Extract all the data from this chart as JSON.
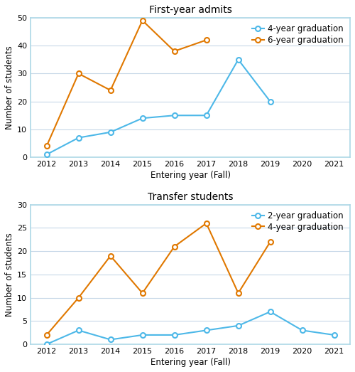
{
  "top": {
    "title": "First-year admits",
    "xlabel": "Entering year (Fall)",
    "ylabel": "Number of students",
    "xlim": [
      2011.5,
      2021.5
    ],
    "ylim": [
      0,
      50
    ],
    "yticks": [
      0,
      10,
      20,
      30,
      40,
      50
    ],
    "xticks": [
      2012,
      2013,
      2014,
      2015,
      2016,
      2017,
      2018,
      2019,
      2020,
      2021
    ],
    "series": [
      {
        "label": "4-year graduation",
        "color": "#4db8e8",
        "x": [
          2012,
          2013,
          2014,
          2015,
          2016,
          2017,
          2018,
          2019
        ],
        "y": [
          1,
          7,
          9,
          14,
          15,
          15,
          35,
          20
        ]
      },
      {
        "label": "6-year graduation",
        "color": "#e07800",
        "x": [
          2012,
          2013,
          2014,
          2015,
          2016,
          2017
        ],
        "y": [
          4,
          30,
          24,
          49,
          38,
          42
        ]
      }
    ]
  },
  "bottom": {
    "title": "Transfer students",
    "xlabel": "Entering year (Fall)",
    "ylabel": "Number of students",
    "xlim": [
      2011.5,
      2021.5
    ],
    "ylim": [
      0,
      30
    ],
    "yticks": [
      0,
      5,
      10,
      15,
      20,
      25,
      30
    ],
    "xticks": [
      2012,
      2013,
      2014,
      2015,
      2016,
      2017,
      2018,
      2019,
      2020,
      2021
    ],
    "series": [
      {
        "label": "2-year graduation",
        "color": "#4db8e8",
        "x": [
          2012,
          2013,
          2014,
          2015,
          2016,
          2017,
          2018,
          2019,
          2020,
          2021
        ],
        "y": [
          0,
          3,
          1,
          2,
          2,
          3,
          4,
          7,
          3,
          2
        ]
      },
      {
        "label": "4-year graduation",
        "color": "#e07800",
        "x": [
          2012,
          2013,
          2014,
          2015,
          2016,
          2017,
          2018,
          2019
        ],
        "y": [
          2,
          10,
          19,
          11,
          21,
          26,
          11,
          22
        ]
      }
    ]
  },
  "bg_color": "#ffffff",
  "plot_bg_color": "#ffffff",
  "spine_color": "#add8e6",
  "marker": "o",
  "marker_size": 5,
  "linewidth": 1.5,
  "grid_color": "#c8d8e8",
  "legend_fontsize": 8.5,
  "title_fontsize": 10,
  "axis_label_fontsize": 8.5,
  "tick_fontsize": 8
}
